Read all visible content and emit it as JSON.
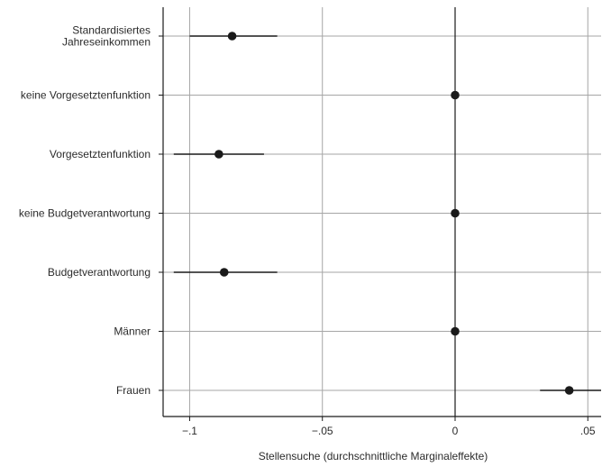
{
  "chart_data": {
    "type": "scatter",
    "subtype": "coefficient-plot",
    "xlabel": "Stellensuche (durchschnittliche Marginaleffekte)",
    "ylabel": "",
    "title": "",
    "xlim": [
      -0.11,
      0.055
    ],
    "x_ticks": [
      {
        "value": -0.1,
        "label": "−.1"
      },
      {
        "value": -0.05,
        "label": "−.05"
      },
      {
        "value": 0,
        "label": "0"
      },
      {
        "value": 0.05,
        "label": ".05"
      }
    ],
    "grid": true,
    "legend": "none",
    "zero_line": 0,
    "categories": [
      {
        "label": [
          "Standardisiertes",
          "Jahreseinkommen"
        ],
        "estimate": -0.084,
        "ci": [
          -0.1,
          -0.067
        ]
      },
      {
        "label": [
          "keine Vorgesetztenfunktion"
        ],
        "estimate": 0.0,
        "ci": null
      },
      {
        "label": [
          "Vorgesetztenfunktion"
        ],
        "estimate": -0.089,
        "ci": [
          -0.106,
          -0.072
        ]
      },
      {
        "label": [
          "keine Budgetverantwortung"
        ],
        "estimate": 0.0,
        "ci": null
      },
      {
        "label": [
          "Budgetverantwortung"
        ],
        "estimate": -0.087,
        "ci": [
          -0.106,
          -0.067
        ]
      },
      {
        "label": [
          "Männer"
        ],
        "estimate": 0.0,
        "ci": null
      },
      {
        "label": [
          "Frauen"
        ],
        "estimate": 0.043,
        "ci": [
          0.032,
          0.055
        ]
      }
    ],
    "colors": {
      "marker": "#1a1a1a",
      "grid": "#a6a6a6",
      "axis": "#1a1a1a",
      "ci": "#1a1a1a"
    }
  }
}
